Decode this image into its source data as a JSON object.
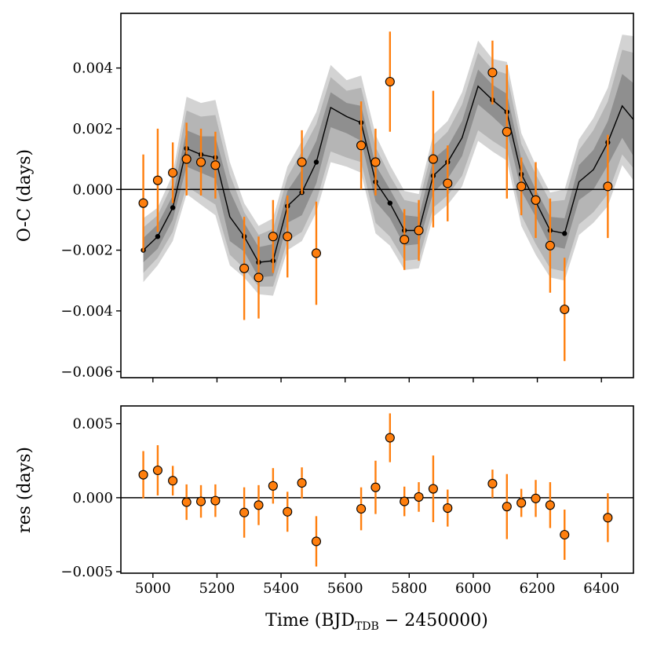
{
  "chart_data": [
    {
      "type": "scatter",
      "panel": "top",
      "ylabel": "O-C (days)",
      "xlim": [
        4900,
        6500
      ],
      "ylim": [
        -0.0062,
        0.0058
      ],
      "yticks": [
        -0.006,
        -0.004,
        -0.002,
        0.0,
        0.002,
        0.004
      ],
      "ytick_labels": [
        "−0.006",
        "−0.004",
        "−0.002",
        "0.000",
        "0.002",
        "0.004"
      ],
      "zero_line": true,
      "colors": {
        "points": "#ff7f0e",
        "model": "#000000",
        "band_outer": "#d3d3d3",
        "band_mid": "#b5b5b5",
        "band_inner": "#8f8f8f"
      },
      "model_curve": {
        "x": [
          4970,
          5015,
          5062,
          5105,
          5150,
          5195,
          5240,
          5285,
          5330,
          5375,
          5420,
          5465,
          5510,
          5555,
          5605,
          5650,
          5695,
          5740,
          5785,
          5830,
          5875,
          5920,
          5965,
          6015,
          6060,
          6105,
          6150,
          6195,
          6240,
          6285,
          6330,
          6375,
          6420,
          6465,
          6500
        ],
        "y": [
          -0.002,
          -0.00155,
          -0.0006,
          0.00135,
          0.00115,
          0.00105,
          -0.0009,
          -0.00155,
          -0.0024,
          -0.00235,
          -0.00055,
          -0.0001,
          0.0009,
          0.0027,
          0.0024,
          0.0022,
          0.00025,
          -0.00045,
          -0.00135,
          -0.00135,
          0.00045,
          0.0009,
          0.0017,
          0.0034,
          0.00295,
          0.00255,
          0.0005,
          -0.0004,
          -0.00135,
          -0.00145,
          0.00025,
          0.00065,
          0.00155,
          0.00275,
          0.0023
        ],
        "markers_x": [
          4970,
          5015,
          5062,
          5105,
          5150,
          5195,
          5285,
          5330,
          5375,
          5420,
          5465,
          5510,
          5650,
          5695,
          5740,
          5785,
          5830,
          5875,
          5920,
          6060,
          6105,
          6150,
          6195,
          6240,
          6285,
          6420
        ]
      },
      "bands": {
        "x": [
          4970,
          5015,
          5062,
          5105,
          5150,
          5195,
          5240,
          5285,
          5330,
          5375,
          5420,
          5465,
          5510,
          5555,
          5605,
          5650,
          5695,
          5740,
          5785,
          5830,
          5875,
          5920,
          5965,
          6015,
          6060,
          6105,
          6150,
          6195,
          6240,
          6285,
          6330,
          6375,
          6420,
          6465,
          6500
        ],
        "outer_upper": [
          -0.00095,
          -0.0006,
          0.0005,
          0.00305,
          0.00285,
          0.00295,
          0.0009,
          -0.00045,
          -0.0012,
          -0.00095,
          0.00075,
          0.0016,
          0.00255,
          0.0041,
          0.0036,
          0.00375,
          0.0018,
          0.0008,
          -5e-05,
          -0.00015,
          0.0018,
          0.00225,
          0.0032,
          0.0049,
          0.0043,
          0.0042,
          0.00185,
          0.0008,
          -0.0001,
          0.0,
          0.00165,
          0.00235,
          0.00335,
          0.0051,
          0.00505
        ],
        "outer_lower": [
          -0.00305,
          -0.0025,
          -0.0017,
          -0.00015,
          -0.0005,
          -0.00085,
          -0.0025,
          -0.0029,
          -0.00345,
          -0.0035,
          -0.002,
          -0.0017,
          -0.00075,
          0.0009,
          0.00075,
          0.00055,
          -0.00145,
          -0.00185,
          -0.00265,
          -0.0026,
          -0.0009,
          -0.0005,
          0.0001,
          0.0016,
          0.00125,
          0.00095,
          -0.0012,
          -0.00215,
          -0.0029,
          -0.003,
          -0.0015,
          -0.0011,
          -0.00055,
          0.0008,
          0.0003
        ],
        "mid_upper": [
          -0.00125,
          -0.00085,
          0.0002,
          0.0026,
          0.0024,
          0.00245,
          0.0005,
          -0.00075,
          -0.0015,
          -0.0013,
          0.0004,
          0.00125,
          0.00215,
          0.0037,
          0.00325,
          0.00335,
          0.0014,
          0.00045,
          -0.00035,
          -0.00045,
          0.00145,
          0.0019,
          0.0028,
          0.0045,
          0.00395,
          0.0038,
          0.0015,
          0.0005,
          -0.0004,
          -0.00035,
          0.0013,
          0.00195,
          0.0029,
          0.0046,
          0.0045
        ],
        "mid_lower": [
          -0.00275,
          -0.00225,
          -0.0014,
          0.0001,
          -0.0002,
          -0.0005,
          -0.00215,
          -0.0026,
          -0.0032,
          -0.0032,
          -0.0017,
          -0.0014,
          -0.0004,
          0.00125,
          0.00105,
          0.0009,
          -0.0011,
          -0.00155,
          -0.00235,
          -0.0023,
          -0.0006,
          -0.0002,
          0.00045,
          0.00195,
          0.0016,
          0.0013,
          -0.00085,
          -0.0018,
          -0.0026,
          -0.0027,
          -0.00115,
          -0.00075,
          -0.00015,
          0.00115,
          0.0007
        ],
        "inner_upper": [
          -0.0016,
          -0.00115,
          -0.0002,
          0.00195,
          0.00175,
          0.00175,
          -5e-05,
          -0.0011,
          -0.0019,
          -0.0018,
          -5e-05,
          0.00065,
          0.0016,
          0.0032,
          0.00285,
          0.00275,
          0.0008,
          0.0,
          -0.00085,
          -0.0009,
          0.001,
          0.0014,
          0.00225,
          0.00395,
          0.00345,
          0.00315,
          0.001,
          0.0,
          -0.0009,
          -0.00095,
          0.0008,
          0.0013,
          0.00225,
          0.0038,
          0.0035
        ],
        "inner_lower": [
          -0.0024,
          -0.00195,
          -0.001,
          0.00075,
          0.00055,
          0.00035,
          -0.0017,
          -0.00205,
          -0.0029,
          -0.00285,
          -0.0011,
          -0.00085,
          0.0002,
          0.00205,
          0.00185,
          0.0016,
          -0.0004,
          -0.00095,
          -0.00185,
          -0.0018,
          -0.0001,
          0.00035,
          0.0011,
          0.0028,
          0.0024,
          0.00195,
          -5e-05,
          -0.0009,
          -0.00185,
          -0.00195,
          -0.00035,
          0.0,
          0.0008,
          0.0017,
          0.0011
        ]
      },
      "observations": {
        "x": [
          4970,
          5015,
          5062,
          5105,
          5150,
          5195,
          5285,
          5330,
          5375,
          5420,
          5465,
          5510,
          5650,
          5695,
          5740,
          5785,
          5830,
          5875,
          5920,
          6060,
          6105,
          6150,
          6195,
          6240,
          6285,
          6420
        ],
        "y": [
          -0.00045,
          0.0003,
          0.00055,
          0.001,
          0.0009,
          0.0008,
          -0.0026,
          -0.0029,
          -0.00155,
          -0.00155,
          0.0009,
          -0.0021,
          0.00145,
          0.0009,
          0.00355,
          -0.00165,
          -0.00135,
          0.001,
          0.0002,
          0.00385,
          0.0019,
          0.0001,
          -0.00035,
          -0.00185,
          -0.00395,
          0.0001
        ],
        "err": [
          0.0016,
          0.0017,
          0.001,
          0.0012,
          0.0011,
          0.0011,
          0.0017,
          0.00135,
          0.0012,
          0.00135,
          0.00105,
          0.0017,
          0.00145,
          0.0011,
          0.00165,
          0.001,
          0.001,
          0.00225,
          0.00125,
          0.00105,
          0.0022,
          0.00095,
          0.00125,
          0.00155,
          0.0017,
          0.0017
        ]
      }
    },
    {
      "type": "scatter",
      "panel": "bottom",
      "xlabel_main": "Time (",
      "xlabel_math": "BJD",
      "xlabel_sub": "TDB",
      "xlabel_tail": " − 2450000)",
      "ylabel": "res (days)",
      "xlim": [
        4900,
        6500
      ],
      "ylim": [
        -0.0051,
        0.0062
      ],
      "xticks": [
        5000,
        5200,
        5400,
        5600,
        5800,
        6000,
        6200,
        6400
      ],
      "xtick_labels": [
        "5000",
        "5200",
        "5400",
        "5600",
        "5800",
        "6000",
        "6200",
        "6400"
      ],
      "yticks": [
        -0.005,
        0.0,
        0.005
      ],
      "ytick_labels": [
        "−0.005",
        "0.000",
        "0.005"
      ],
      "zero_line": true,
      "residuals": {
        "x": [
          4970,
          5015,
          5062,
          5105,
          5150,
          5195,
          5285,
          5330,
          5375,
          5420,
          5465,
          5510,
          5650,
          5695,
          5740,
          5785,
          5830,
          5875,
          5920,
          6060,
          6105,
          6150,
          6195,
          6240,
          6285,
          6420
        ],
        "y": [
          0.00155,
          0.00185,
          0.00115,
          -0.0003,
          -0.00025,
          -0.0002,
          -0.001,
          -0.0005,
          0.0008,
          -0.00095,
          0.001,
          -0.00295,
          -0.00075,
          0.0007,
          0.00405,
          -0.00025,
          5e-05,
          0.0006,
          -0.0007,
          0.00095,
          -0.0006,
          -0.00035,
          -5e-05,
          -0.0005,
          -0.0025,
          -0.00135
        ],
        "err": [
          0.0016,
          0.0017,
          0.001,
          0.0012,
          0.0011,
          0.0011,
          0.0017,
          0.00135,
          0.0012,
          0.00135,
          0.00105,
          0.0017,
          0.00145,
          0.0018,
          0.00165,
          0.001,
          0.001,
          0.00225,
          0.00125,
          0.00095,
          0.0022,
          0.00095,
          0.00125,
          0.00155,
          0.0017,
          0.00165
        ]
      }
    }
  ]
}
